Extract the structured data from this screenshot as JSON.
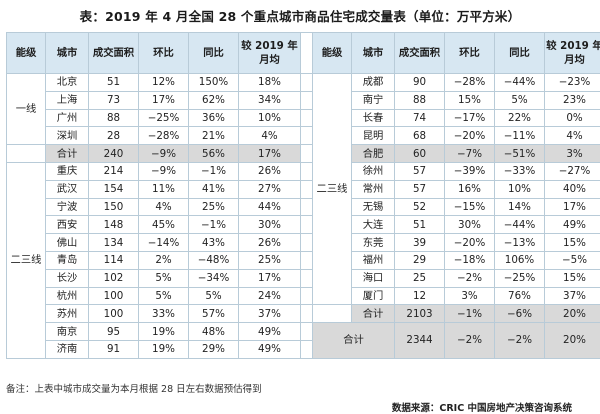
{
  "title": "表：2019 年 4 月全国 28 个重点城市商品住宅成交量表（单位：万平方米）",
  "headers": [
    "能级",
    "城市",
    "成交面积",
    "环比",
    "同比",
    "较 2019 年月均"
  ],
  "left_rows": [
    {
      "city": "北京",
      "area": "51",
      "mom": "12%",
      "yoy": "150%",
      "avg": "18%"
    },
    {
      "city": "上海",
      "area": "73",
      "mom": "17%",
      "yoy": "62%",
      "avg": "34%"
    },
    {
      "city": "广州",
      "area": "88",
      "mom": "−25%",
      "yoy": "36%",
      "avg": "10%"
    },
    {
      "city": "深圳",
      "area": "28",
      "mom": "−28%",
      "yoy": "21%",
      "avg": "4%"
    },
    {
      "city": "合计",
      "area": "240",
      "mom": "−9%",
      "yoy": "56%",
      "avg": "17%"
    },
    {
      "city": "重庆",
      "area": "214",
      "mom": "−9%",
      "yoy": "−1%",
      "avg": "26%"
    },
    {
      "city": "武汉",
      "area": "154",
      "mom": "11%",
      "yoy": "41%",
      "avg": "27%"
    },
    {
      "city": "宁波",
      "area": "150",
      "mom": "4%",
      "yoy": "25%",
      "avg": "44%"
    },
    {
      "city": "西安",
      "area": "148",
      "mom": "45%",
      "yoy": "−1%",
      "avg": "30%"
    },
    {
      "city": "佛山",
      "area": "134",
      "mom": "−14%",
      "yoy": "43%",
      "avg": "26%"
    },
    {
      "city": "青岛",
      "area": "114",
      "mom": "2%",
      "yoy": "−48%",
      "avg": "25%"
    },
    {
      "city": "长沙",
      "area": "102",
      "mom": "5%",
      "yoy": "−34%",
      "avg": "17%"
    },
    {
      "city": "杭州",
      "area": "100",
      "mom": "5%",
      "yoy": "5%",
      "avg": "24%"
    },
    {
      "city": "苏州",
      "area": "100",
      "mom": "33%",
      "yoy": "57%",
      "avg": "37%"
    },
    {
      "city": "南京",
      "area": "95",
      "mom": "19%",
      "yoy": "48%",
      "avg": "49%"
    },
    {
      "city": "济南",
      "area": "91",
      "mom": "19%",
      "yoy": "29%",
      "avg": "49%"
    }
  ],
  "right_rows": [
    {
      "city": "成都",
      "area": "90",
      "mom": "−28%",
      "yoy": "−44%",
      "avg": "−23%"
    },
    {
      "city": "南宁",
      "area": "88",
      "mom": "15%",
      "yoy": "5%",
      "avg": "23%"
    },
    {
      "city": "长春",
      "area": "74",
      "mom": "−17%",
      "yoy": "22%",
      "avg": "0%"
    },
    {
      "city": "昆明",
      "area": "68",
      "mom": "−20%",
      "yoy": "−11%",
      "avg": "4%"
    },
    {
      "city": "合肥",
      "area": "60",
      "mom": "−7%",
      "yoy": "−51%",
      "avg": "3%"
    },
    {
      "city": "徐州",
      "area": "57",
      "mom": "−39%",
      "yoy": "−33%",
      "avg": "−27%"
    },
    {
      "city": "常州",
      "area": "57",
      "mom": "16%",
      "yoy": "10%",
      "avg": "40%"
    },
    {
      "city": "无锡",
      "area": "52",
      "mom": "−15%",
      "yoy": "14%",
      "avg": "17%"
    },
    {
      "city": "大连",
      "area": "51",
      "mom": "30%",
      "yoy": "−44%",
      "avg": "49%"
    },
    {
      "city": "东莞",
      "area": "39",
      "mom": "−20%",
      "yoy": "−13%",
      "avg": "15%"
    },
    {
      "city": "福州",
      "area": "29",
      "mom": "−18%",
      "yoy": "106%",
      "avg": "−5%"
    },
    {
      "city": "海口",
      "area": "25",
      "mom": "−2%",
      "yoy": "−25%",
      "avg": "15%"
    },
    {
      "city": "厦门",
      "area": "12",
      "mom": "3%",
      "yoy": "76%",
      "avg": "37%"
    },
    {
      "city": "合计",
      "area": "2103",
      "mom": "−1%",
      "yoy": "−6%",
      "avg": "20%"
    }
  ],
  "grand_total": {
    "label": "合计",
    "area": "2344",
    "mom": "−2%",
    "yoy": "−2%",
    "avg": "20%"
  },
  "tier_left_1": "一线",
  "tier_left_2": "二三线",
  "tier_right": "二三线",
  "note": "备注：上表中城市成交量为本月根据 28 日左右数据预估得到",
  "source": "数据来源：CRIC 中国房地产决策咨询系统"
}
